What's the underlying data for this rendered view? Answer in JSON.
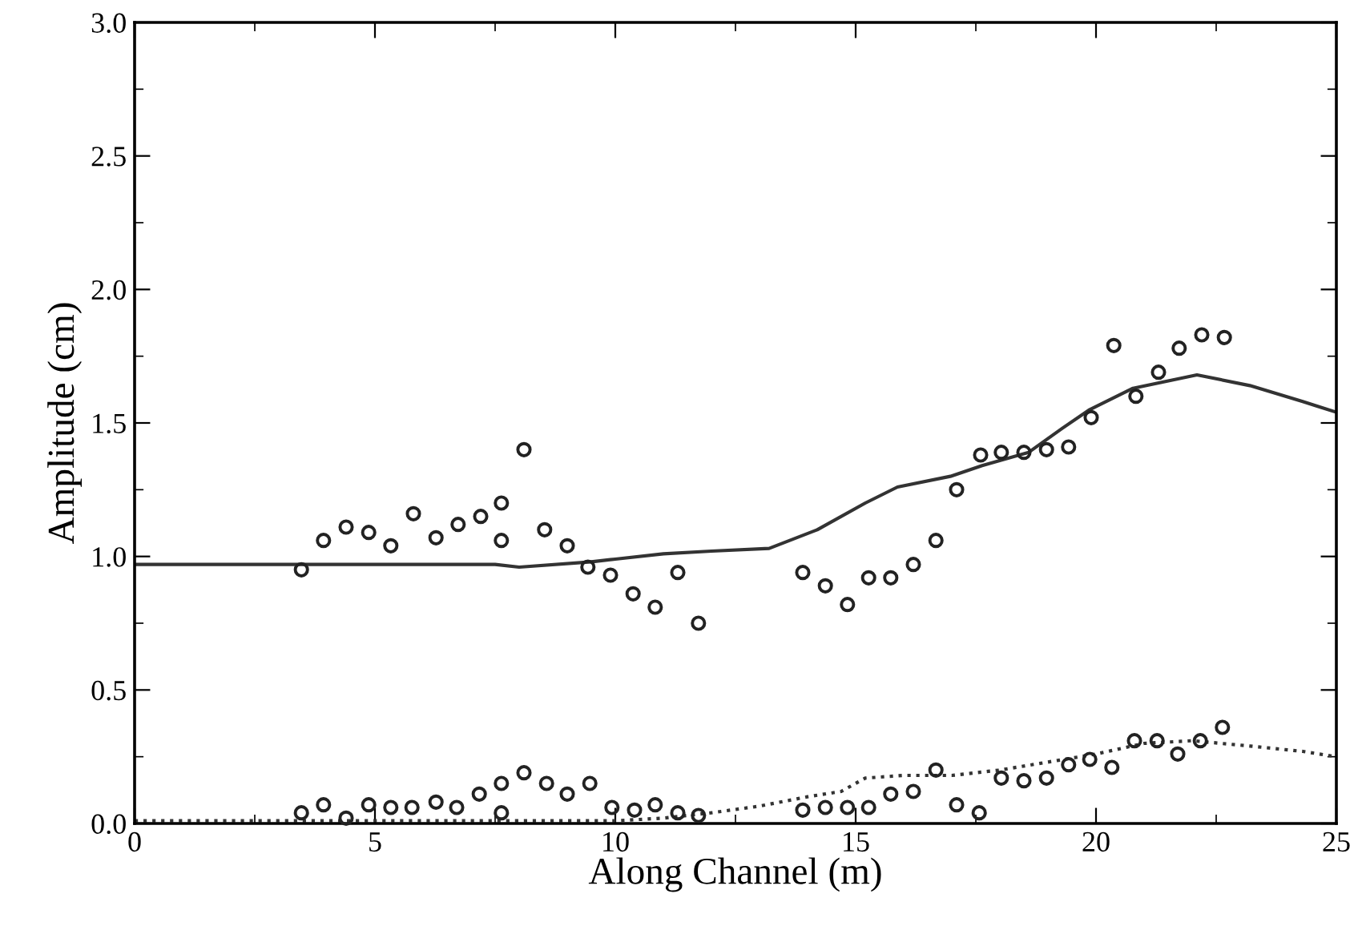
{
  "chart_data": {
    "type": "scatter",
    "xlabel": "Along Channel (m)",
    "ylabel": "Amplitude (cm)",
    "xlim": [
      0,
      25
    ],
    "ylim": [
      0,
      3.0
    ],
    "xticks": [
      0,
      5,
      10,
      15,
      20,
      25
    ],
    "yticks": [
      {
        "value": 0,
        "label": "0.0"
      },
      0.5,
      {
        "value": 1,
        "label": "1.0"
      },
      1.5,
      {
        "value": 2,
        "label": "2.0"
      },
      2.5,
      {
        "value": 3,
        "label": "3.0"
      }
    ],
    "grid": false,
    "legend": false,
    "series": [
      {
        "marker": "circle",
        "color": "#222222",
        "x": [
          3.47,
          3.93,
          4.4,
          4.87,
          5.33,
          5.8,
          6.27,
          6.73,
          7.2,
          7.63,
          7.63,
          8.1,
          8.53,
          9.0,
          9.43,
          9.9,
          10.37,
          10.83,
          11.3,
          11.73,
          13.9,
          14.37,
          14.83,
          15.27,
          15.73,
          16.2,
          16.67,
          17.1,
          17.6,
          18.03,
          18.5,
          18.97,
          19.43,
          19.9,
          20.37,
          20.83,
          21.3,
          21.73,
          22.2,
          22.67
        ],
        "values": [
          0.95,
          1.06,
          1.11,
          1.09,
          1.04,
          1.16,
          1.07,
          1.12,
          1.15,
          1.2,
          1.06,
          1.4,
          1.1,
          1.04,
          0.96,
          0.93,
          0.86,
          0.81,
          0.94,
          0.75,
          0.94,
          0.89,
          0.82,
          0.92,
          0.92,
          0.97,
          1.06,
          1.25,
          1.38,
          1.39,
          1.39,
          1.4,
          1.41,
          1.52,
          1.79,
          1.6,
          1.69,
          1.78,
          1.83,
          1.82
        ]
      },
      {
        "marker": "circle",
        "color": "#222222",
        "x": [
          3.47,
          3.93,
          4.4,
          4.87,
          5.33,
          5.77,
          6.27,
          6.7,
          7.17,
          7.63,
          7.63,
          8.1,
          8.57,
          9.0,
          9.47,
          9.93,
          10.4,
          10.83,
          11.3,
          11.73,
          13.9,
          14.37,
          14.83,
          15.27,
          15.73,
          16.2,
          16.67,
          17.1,
          17.57,
          18.03,
          18.5,
          18.97,
          19.43,
          19.87,
          20.33,
          20.8,
          21.27,
          21.7,
          22.17,
          22.63
        ],
        "values": [
          0.04,
          0.07,
          0.02,
          0.07,
          0.06,
          0.06,
          0.08,
          0.06,
          0.11,
          0.15,
          0.04,
          0.19,
          0.15,
          0.11,
          0.15,
          0.06,
          0.05,
          0.07,
          0.04,
          0.03,
          0.05,
          0.06,
          0.06,
          0.06,
          0.11,
          0.12,
          0.2,
          0.07,
          0.04,
          0.17,
          0.16,
          0.17,
          0.22,
          0.24,
          0.21,
          0.31,
          0.31,
          0.26,
          0.31,
          0.36
        ]
      },
      {
        "type": "line",
        "line_style": "solid",
        "marker": "none",
        "color": "#333333",
        "x": [
          0,
          7.5,
          8.0,
          9.5,
          10,
          11,
          12,
          13.2,
          14.2,
          15.2,
          15.87,
          16.97,
          17.63,
          18.6,
          19.3,
          19.87,
          20.77,
          22.1,
          23.2,
          24.3,
          25
        ],
        "values": [
          0.97,
          0.97,
          0.96,
          0.98,
          0.99,
          1.01,
          1.02,
          1.03,
          1.1,
          1.2,
          1.26,
          1.3,
          1.34,
          1.39,
          1.48,
          1.55,
          1.63,
          1.68,
          1.64,
          1.58,
          1.54
        ]
      },
      {
        "type": "line",
        "line_style": "dotted",
        "marker": "none",
        "color": "#333333",
        "x": [
          0,
          10,
          11,
          12,
          13,
          14,
          14.7,
          15.2,
          16,
          17,
          18,
          19,
          20,
          21,
          22,
          23.2,
          24.3,
          25
        ],
        "values": [
          0.01,
          0.01,
          0.02,
          0.04,
          0.065,
          0.1,
          0.12,
          0.17,
          0.18,
          0.18,
          0.2,
          0.23,
          0.26,
          0.3,
          0.31,
          0.29,
          0.27,
          0.25
        ]
      }
    ]
  }
}
